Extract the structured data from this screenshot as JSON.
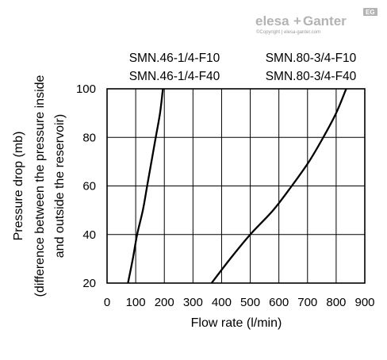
{
  "brand": {
    "name_part1": "elesa",
    "name_sep": "+",
    "name_part2": "Ganter",
    "copyright": "©Copyright | elesa-ganter.com",
    "badge": "EG",
    "color": "#b3b3b3"
  },
  "chart_data": {
    "type": "line",
    "title": "",
    "xlabel": "Flow rate (l/min)",
    "ylabel_lines": [
      "Pressure drop (mb)",
      "(difference between the pressure inside",
      "and outside the reservoir)"
    ],
    "xlim": [
      0,
      900
    ],
    "ylim": [
      20,
      100
    ],
    "x_ticks": [
      "0",
      "100",
      "200",
      "300",
      "400",
      "500",
      "600",
      "700",
      "800",
      "900"
    ],
    "y_ticks": [
      "20",
      "40",
      "60",
      "80",
      "100"
    ],
    "grid": true,
    "series": [
      {
        "name_lines": [
          "SMN.46-1/4-F10",
          "SMN.46-1/4-F40"
        ],
        "color": "#000000",
        "points": [
          [
            73,
            20
          ],
          [
            90,
            30
          ],
          [
            105,
            40
          ],
          [
            125,
            50
          ],
          [
            140,
            60
          ],
          [
            155,
            70
          ],
          [
            170,
            80
          ],
          [
            185,
            90
          ],
          [
            195,
            100
          ]
        ]
      },
      {
        "name_lines": [
          "SMN.80-3/4-F10",
          "SMN.80-3/4-F40"
        ],
        "color": "#000000",
        "points": [
          [
            365,
            20
          ],
          [
            430,
            30
          ],
          [
            500,
            40
          ],
          [
            580,
            50
          ],
          [
            645,
            60
          ],
          [
            705,
            70
          ],
          [
            755,
            80
          ],
          [
            800,
            90
          ],
          [
            835,
            100
          ]
        ]
      }
    ]
  }
}
